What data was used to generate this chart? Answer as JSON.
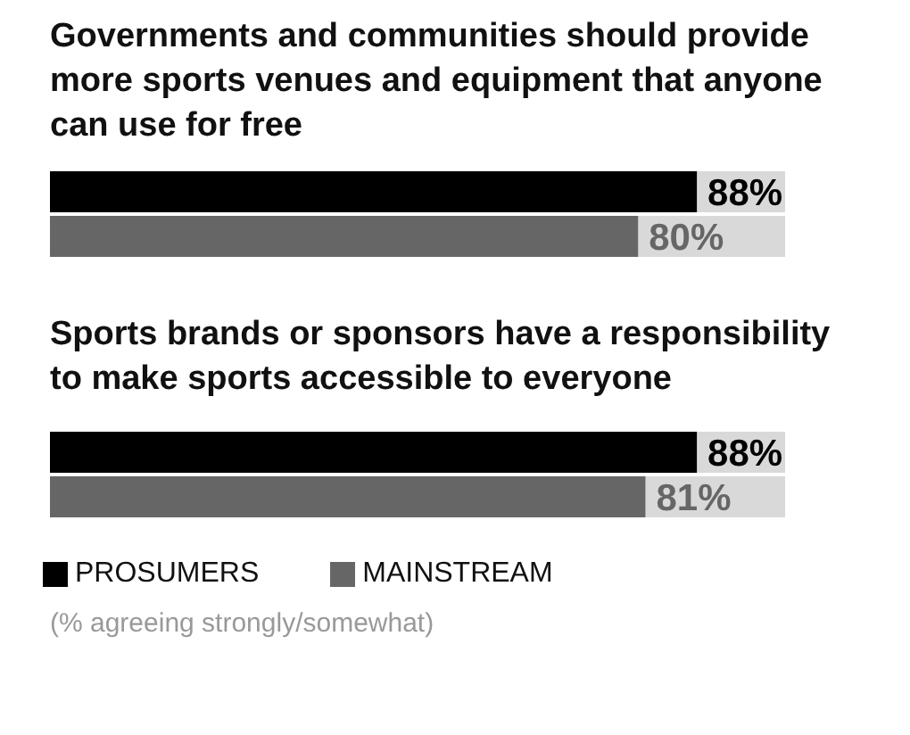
{
  "chart_data": [
    {
      "type": "bar",
      "orientation": "horizontal",
      "title": "Governments and communities should provide more sports venues and equipment that anyone can use for free",
      "categories": [
        null
      ],
      "xlim": [
        0,
        100
      ],
      "tick_labels": false,
      "legend": false,
      "series": [
        {
          "color": "#000000",
          "values": [
            88
          ],
          "value_labels": [
            "88%"
          ]
        },
        {
          "color": "#666666",
          "values": [
            80
          ],
          "value_labels": [
            "80%"
          ]
        }
      ]
    },
    {
      "type": "bar",
      "orientation": "horizontal",
      "title": "Sports brands or sponsors have a responsibility to make sports accessible to everyone",
      "categories": [
        null
      ],
      "xlim": [
        0,
        100
      ],
      "tick_labels": false,
      "legend": "bottom",
      "annotations": [
        "(% agreeing strongly/somewhat)"
      ],
      "series": [
        {
          "name": "PROSUMERS",
          "color": "#000000",
          "values": [
            88
          ],
          "value_labels": [
            "88%"
          ]
        },
        {
          "name": "MAINSTREAM",
          "color": "#666666",
          "values": [
            81
          ],
          "value_labels": [
            "81%"
          ]
        }
      ]
    }
  ]
}
